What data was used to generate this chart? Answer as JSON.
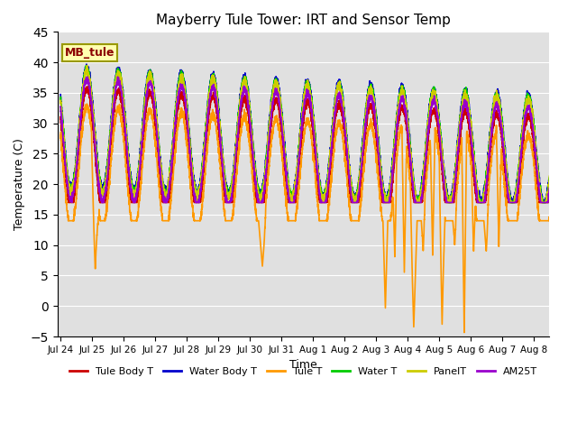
{
  "title": "Mayberry Tule Tower: IRT and Sensor Temp",
  "xlabel": "Time",
  "ylabel": "Temperature (C)",
  "ylim": [
    -5,
    45
  ],
  "yticks": [
    -5,
    0,
    5,
    10,
    15,
    20,
    25,
    30,
    35,
    40,
    45
  ],
  "xtick_labels": [
    "Jul 24",
    "Jul 25",
    "Jul 26",
    "Jul 27",
    "Jul 28",
    "Jul 29",
    "Jul 30",
    "Jul 31",
    "Aug 1",
    "Aug 2",
    "Aug 3",
    "Aug 4",
    "Aug 5",
    "Aug 6",
    "Aug 7",
    "Aug 8"
  ],
  "station_label": "MB_tule",
  "bg_color": "#e0e0e0",
  "fig_bg": "#ffffff",
  "series_colors": {
    "Tule Body T": "#cc0000",
    "Water Body T": "#0000cc",
    "Tule T": "#ff9900",
    "Water T": "#00cc00",
    "PanelT": "#cccc00",
    "AM25T": "#9900cc"
  },
  "line_width": 1.2,
  "n_days": 15.5,
  "pts_per_day": 288
}
